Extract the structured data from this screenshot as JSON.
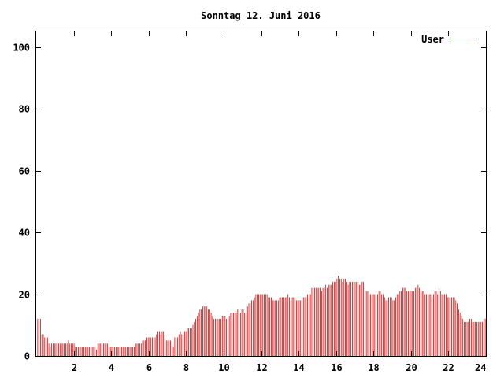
{
  "chart_data": {
    "type": "bar",
    "title": "Sonntag 12. Juni 2016",
    "xlabel": "",
    "ylabel": "",
    "xlim": [
      0,
      24
    ],
    "ylim": [
      0,
      105
    ],
    "x_ticks": [
      2,
      4,
      6,
      8,
      10,
      12,
      14,
      16,
      18,
      20,
      22,
      24
    ],
    "y_ticks": [
      0,
      20,
      40,
      60,
      80,
      100
    ],
    "grid": false,
    "legend_position": "top-right",
    "series": [
      {
        "name": "User",
        "color": "#cc0000",
        "values": [
          12,
          12,
          12,
          7,
          7,
          6,
          6,
          6,
          4,
          3,
          4,
          4,
          4,
          4,
          4,
          4,
          4,
          4,
          4,
          4,
          4,
          4,
          5,
          4,
          4,
          4,
          4,
          3,
          3,
          3,
          3,
          3,
          3,
          3,
          3,
          3,
          3,
          3,
          3,
          3,
          3,
          3,
          2,
          4,
          4,
          4,
          4,
          4,
          4,
          4,
          4,
          3,
          3,
          3,
          3,
          3,
          3,
          3,
          3,
          3,
          3,
          3,
          3,
          3,
          3,
          3,
          3,
          3,
          3,
          3,
          4,
          4,
          4,
          4,
          4,
          5,
          5,
          5,
          6,
          6,
          6,
          6,
          6,
          6,
          6,
          7,
          8,
          8,
          7,
          8,
          8,
          6,
          5,
          5,
          5,
          5,
          4,
          3,
          6,
          6,
          6,
          7,
          8,
          7,
          7,
          8,
          8,
          9,
          9,
          9,
          9,
          10,
          11,
          12,
          13,
          14,
          15,
          15,
          16,
          16,
          16,
          16,
          15,
          15,
          14,
          13,
          12,
          12,
          12,
          12,
          12,
          12,
          13,
          13,
          13,
          12,
          12,
          13,
          14,
          14,
          14,
          14,
          14,
          15,
          15,
          14,
          15,
          15,
          14,
          14,
          16,
          17,
          17,
          18,
          18,
          19,
          20,
          20,
          20,
          20,
          20,
          20,
          20,
          20,
          20,
          19,
          19,
          19,
          18,
          18,
          18,
          18,
          18,
          19,
          19,
          19,
          19,
          19,
          19,
          20,
          19,
          18,
          19,
          19,
          19,
          18,
          18,
          18,
          18,
          18,
          19,
          19,
          19,
          20,
          20,
          20,
          22,
          22,
          22,
          22,
          22,
          22,
          22,
          21,
          22,
          22,
          23,
          22,
          23,
          23,
          23,
          24,
          24,
          24,
          25,
          26,
          25,
          25,
          24,
          25,
          25,
          24,
          23,
          24,
          24,
          24,
          24,
          24,
          24,
          24,
          23,
          23,
          24,
          24,
          22,
          21,
          21,
          20,
          20,
          20,
          20,
          20,
          20,
          20,
          21,
          21,
          20,
          20,
          19,
          18,
          18,
          19,
          19,
          19,
          18,
          18,
          19,
          20,
          20,
          21,
          21,
          22,
          22,
          22,
          21,
          21,
          21,
          21,
          21,
          21,
          22,
          22,
          23,
          22,
          21,
          21,
          21,
          20,
          20,
          20,
          20,
          20,
          19,
          20,
          21,
          21,
          20,
          22,
          21,
          20,
          20,
          20,
          20,
          19,
          19,
          19,
          19,
          19,
          19,
          18,
          17,
          15,
          14,
          13,
          12,
          11,
          11,
          11,
          11,
          12,
          12,
          11,
          11,
          11,
          11,
          11,
          11,
          11,
          11,
          12,
          12
        ]
      }
    ]
  }
}
